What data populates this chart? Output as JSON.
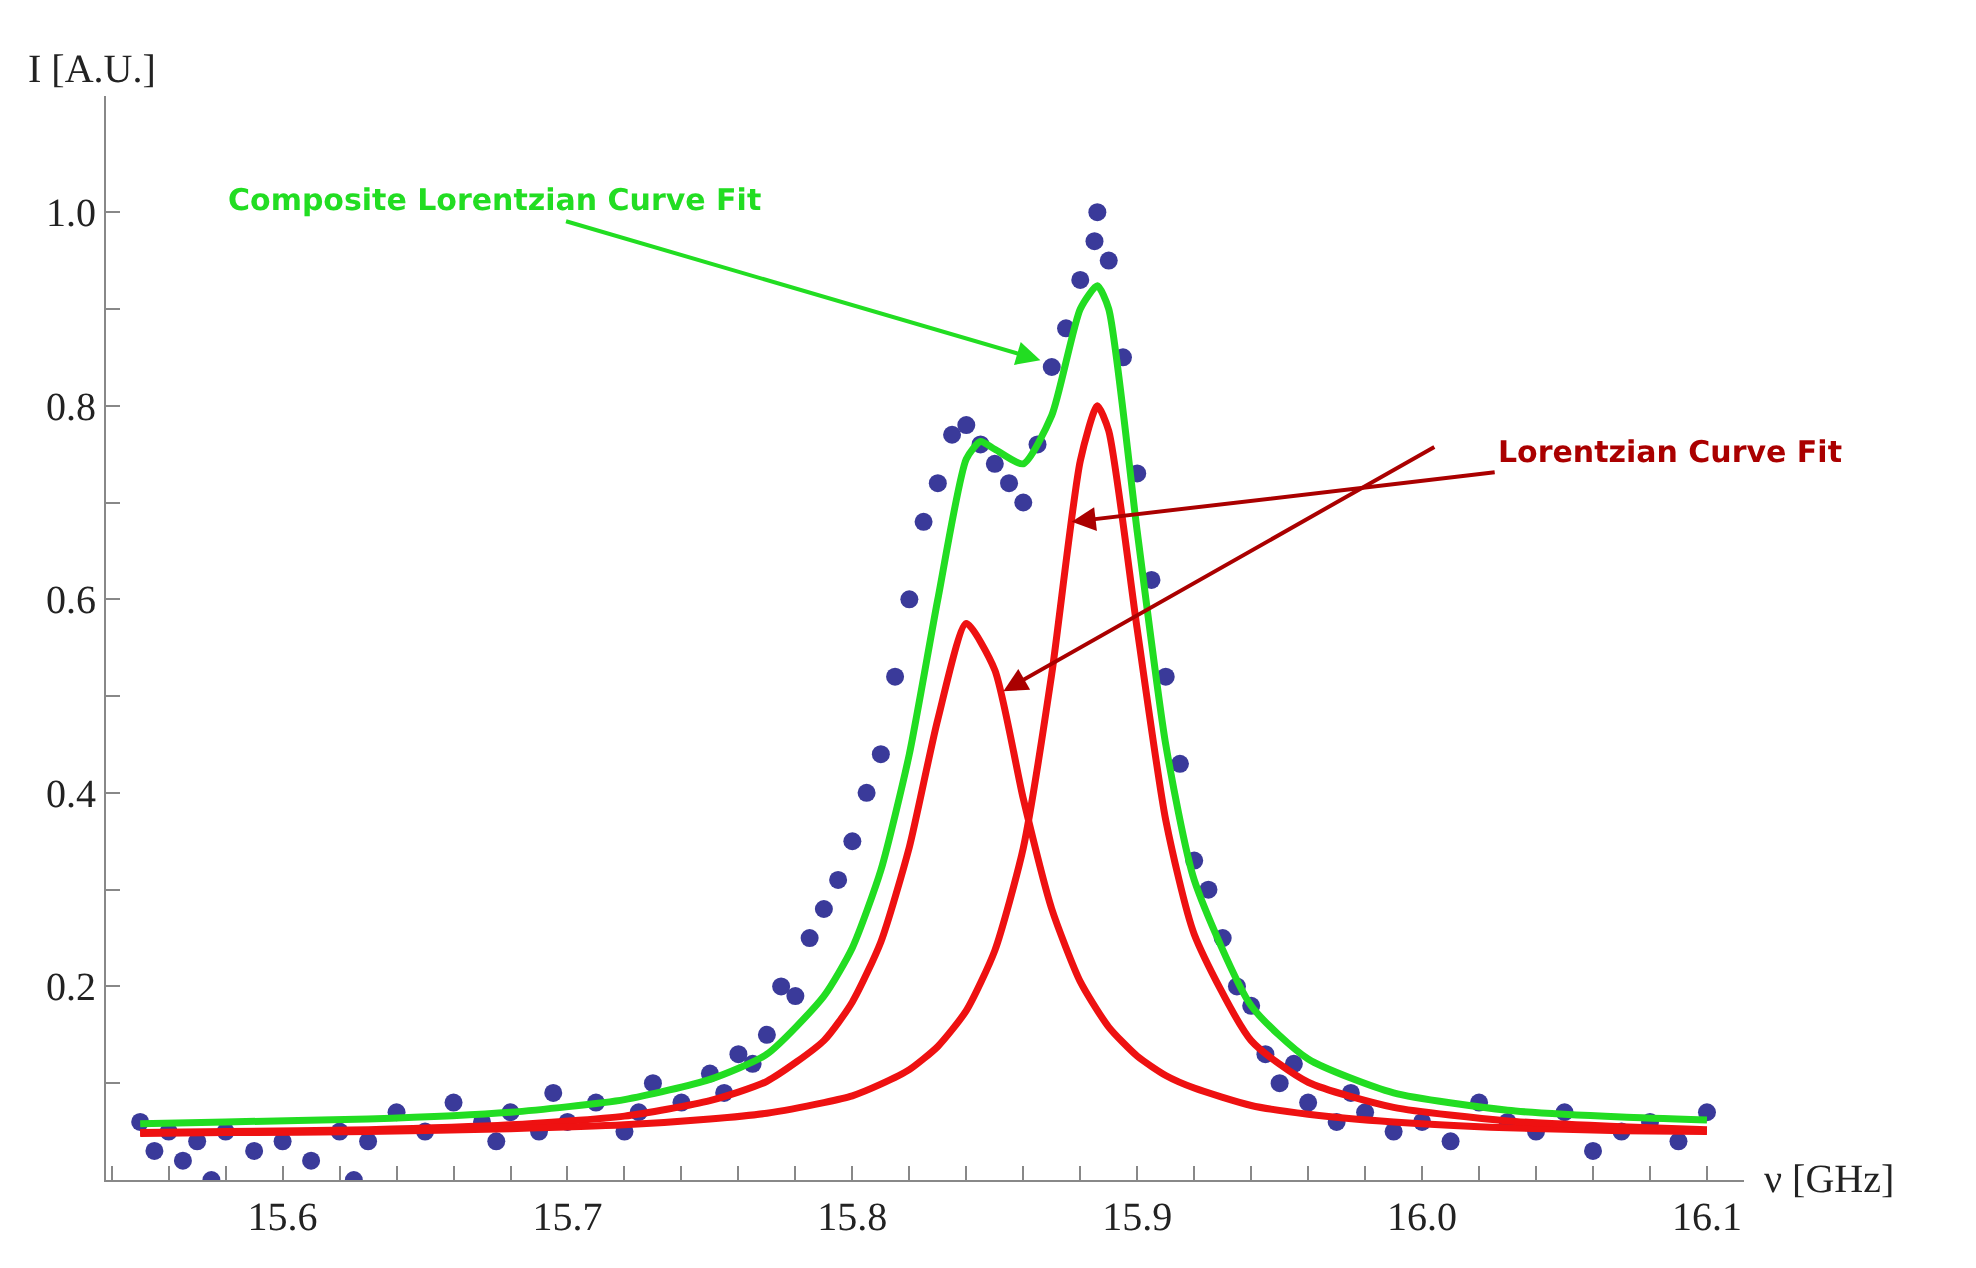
{
  "chart_data": {
    "type": "scatter",
    "xlabel": "ν [GHz]",
    "ylabel": "I [A.U.]",
    "xlim": [
      15.538,
      16.113
    ],
    "ylim": [
      0,
      1.12
    ],
    "xticks": [
      {
        "value": 15.54,
        "label": null
      },
      {
        "value": 15.56,
        "label": null
      },
      {
        "value": 15.58,
        "label": null
      },
      15.6,
      {
        "value": 15.62,
        "label": null
      },
      {
        "value": 15.64,
        "label": null
      },
      {
        "value": 15.66,
        "label": null
      },
      {
        "value": 15.68,
        "label": null
      },
      15.7,
      {
        "value": 15.72,
        "label": null
      },
      {
        "value": 15.74,
        "label": null
      },
      {
        "value": 15.76,
        "label": null
      },
      {
        "value": 15.78,
        "label": null
      },
      15.8,
      {
        "value": 15.82,
        "label": null
      },
      {
        "value": 15.84,
        "label": null
      },
      {
        "value": 15.86,
        "label": null
      },
      {
        "value": 15.88,
        "label": null
      },
      15.9,
      {
        "value": 15.92,
        "label": null
      },
      {
        "value": 15.94,
        "label": null
      },
      {
        "value": 15.96,
        "label": null
      },
      {
        "value": 15.98,
        "label": null
      },
      {
        "value": 16.0,
        "label": "16.0"
      },
      {
        "value": 16.02,
        "label": null
      },
      {
        "value": 16.04,
        "label": null
      },
      {
        "value": 16.06,
        "label": null
      },
      {
        "value": 16.08,
        "label": null
      },
      16.1
    ],
    "yticks": [
      {
        "value": 0.1,
        "label": null
      },
      0.2,
      {
        "value": 0.3,
        "label": null
      },
      0.4,
      {
        "value": 0.5,
        "label": null
      },
      0.6,
      {
        "value": 0.7,
        "label": null
      },
      0.8,
      {
        "value": 0.9,
        "label": null
      },
      {
        "value": 1.0,
        "label": "1.0"
      }
    ],
    "grid": false,
    "line_style": "solid",
    "series": [
      {
        "marker": "circle",
        "color": "#3a3a9a",
        "x": [
          15.55,
          15.555,
          15.56,
          15.565,
          15.57,
          15.575,
          15.58,
          15.59,
          15.6,
          15.61,
          15.62,
          15.625,
          15.63,
          15.64,
          15.65,
          15.66,
          15.67,
          15.675,
          15.68,
          15.69,
          15.695,
          15.7,
          15.71,
          15.72,
          15.725,
          15.73,
          15.74,
          15.75,
          15.755,
          15.76,
          15.765,
          15.77,
          15.775,
          15.78,
          15.785,
          15.79,
          15.795,
          15.8,
          15.805,
          15.81,
          15.815,
          15.82,
          15.825,
          15.83,
          15.835,
          15.84,
          15.845,
          15.85,
          15.855,
          15.86,
          15.865,
          15.87,
          15.875,
          15.88,
          15.885,
          15.886,
          15.89,
          15.895,
          15.9,
          15.905,
          15.91,
          15.915,
          15.92,
          15.925,
          15.93,
          15.935,
          15.94,
          15.945,
          15.95,
          15.955,
          15.96,
          15.97,
          15.975,
          15.98,
          15.99,
          16.0,
          16.01,
          16.02,
          16.03,
          16.04,
          16.05,
          16.06,
          16.07,
          16.08,
          16.09,
          16.1
        ],
        "values": [
          0.06,
          0.03,
          0.05,
          0.02,
          0.04,
          0.0,
          0.05,
          0.03,
          0.04,
          0.02,
          0.05,
          0.0,
          0.04,
          0.07,
          0.05,
          0.08,
          0.06,
          0.04,
          0.07,
          0.05,
          0.09,
          0.06,
          0.08,
          0.05,
          0.07,
          0.1,
          0.08,
          0.11,
          0.09,
          0.13,
          0.12,
          0.15,
          0.2,
          0.19,
          0.25,
          0.28,
          0.31,
          0.35,
          0.4,
          0.44,
          0.52,
          0.6,
          0.68,
          0.72,
          0.77,
          0.78,
          0.76,
          0.74,
          0.72,
          0.7,
          0.76,
          0.84,
          0.88,
          0.93,
          0.97,
          1.0,
          0.95,
          0.85,
          0.73,
          0.62,
          0.52,
          0.43,
          0.33,
          0.3,
          0.25,
          0.2,
          0.18,
          0.13,
          0.1,
          0.12,
          0.08,
          0.06,
          0.09,
          0.07,
          0.05,
          0.06,
          0.04,
          0.08,
          0.06,
          0.05,
          0.07,
          0.03,
          0.05,
          0.06,
          0.04,
          0.07
        ]
      },
      {
        "type": "line",
        "marker": "none",
        "color": "#ee1111",
        "x": [
          15.55,
          15.58,
          15.63,
          15.68,
          15.72,
          15.75,
          15.77,
          15.79,
          15.8,
          15.81,
          15.82,
          15.83,
          15.84,
          15.85,
          15.86,
          15.87,
          15.88,
          15.89,
          15.9,
          15.91,
          15.92,
          15.94,
          15.96,
          15.99,
          16.03,
          16.07,
          16.1
        ],
        "values": [
          0.049,
          0.05,
          0.052,
          0.057,
          0.066,
          0.082,
          0.102,
          0.144,
          0.184,
          0.246,
          0.344,
          0.476,
          0.575,
          0.527,
          0.394,
          0.28,
          0.205,
          0.158,
          0.128,
          0.108,
          0.095,
          0.077,
          0.068,
          0.06,
          0.054,
          0.051,
          0.05
        ]
      },
      {
        "type": "line",
        "marker": "none",
        "color": "#ee1111",
        "x": [
          15.55,
          15.58,
          15.63,
          15.68,
          15.72,
          15.75,
          15.77,
          15.79,
          15.8,
          15.81,
          15.82,
          15.83,
          15.84,
          15.85,
          15.86,
          15.87,
          15.88,
          15.886,
          15.89,
          15.9,
          15.91,
          15.92,
          15.94,
          15.96,
          15.99,
          16.03,
          16.07,
          16.1
        ],
        "values": [
          0.048,
          0.049,
          0.05,
          0.053,
          0.057,
          0.063,
          0.069,
          0.08,
          0.087,
          0.099,
          0.114,
          0.138,
          0.175,
          0.237,
          0.343,
          0.523,
          0.743,
          0.8,
          0.774,
          0.569,
          0.372,
          0.254,
          0.144,
          0.101,
          0.075,
          0.061,
          0.055,
          0.052
        ]
      },
      {
        "type": "line",
        "marker": "none",
        "color": "#22dd22",
        "x": [
          15.55,
          15.58,
          15.63,
          15.68,
          15.72,
          15.75,
          15.77,
          15.79,
          15.8,
          15.81,
          15.82,
          15.83,
          15.84,
          15.845,
          15.85,
          15.86,
          15.87,
          15.88,
          15.886,
          15.89,
          15.9,
          15.91,
          15.92,
          15.94,
          15.96,
          15.99,
          16.03,
          16.07,
          16.1
        ],
        "values": [
          0.058,
          0.06,
          0.063,
          0.07,
          0.083,
          0.104,
          0.13,
          0.19,
          0.24,
          0.32,
          0.44,
          0.6,
          0.745,
          0.763,
          0.755,
          0.74,
          0.79,
          0.9,
          0.924,
          0.9,
          0.67,
          0.45,
          0.31,
          0.18,
          0.125,
          0.09,
          0.072,
          0.065,
          0.062
        ]
      }
    ],
    "annotations": [
      {
        "text": "Composite Lorentzian Curve Fit",
        "x": 15.866,
        "y": 0.847
      },
      {
        "text": "Lorentzian Curve Fit",
        "x": 15.877,
        "y": 0.68
      }
    ]
  }
}
